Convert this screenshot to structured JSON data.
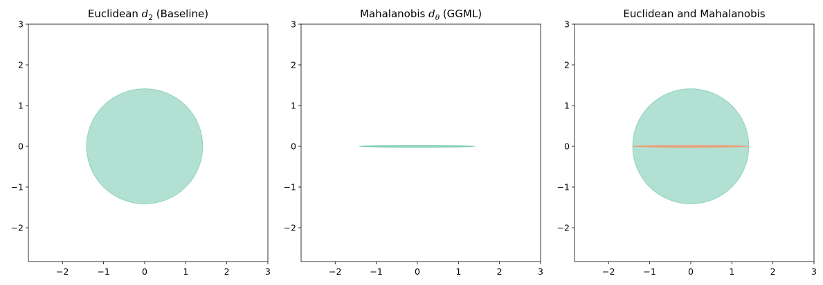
{
  "chart_data": [
    {
      "type": "area",
      "title": "Euclidean d2 (Baseline)",
      "title_parts": {
        "pre": "Euclidean ",
        "sym": "d",
        "sub": "2",
        "post": " (Baseline)"
      },
      "xlabel": "",
      "ylabel": "",
      "xlim": [
        -2.83,
        3
      ],
      "ylim": [
        -2.83,
        3
      ],
      "xticks": [
        -2,
        -1,
        0,
        1,
        2,
        3
      ],
      "yticks": [
        -2,
        -1,
        0,
        1,
        2,
        3
      ],
      "xtick_labels": [
        "−2",
        "−1",
        "0",
        "1",
        "2",
        "3"
      ],
      "ytick_labels": [
        "−2",
        "−1",
        "0",
        "1",
        "2",
        "3"
      ],
      "grid": false,
      "series": [
        {
          "shape": "circle",
          "cx": 0,
          "cy": 0,
          "r": 1.414,
          "color": "#66c2a5",
          "alpha": 0.5
        }
      ]
    },
    {
      "type": "area",
      "title": "Mahalanobis dθ (GGML)",
      "title_parts": {
        "pre": "Mahalanobis ",
        "sym": "d",
        "sub": "θ",
        "post": " (GGML)"
      },
      "xlabel": "",
      "ylabel": "",
      "xlim": [
        -2.83,
        3
      ],
      "ylim": [
        -2.83,
        3
      ],
      "xticks": [
        -2,
        -1,
        0,
        1,
        2,
        3
      ],
      "yticks": [
        -2,
        -1,
        0,
        1,
        2,
        3
      ],
      "xtick_labels": [
        "−2",
        "−1",
        "0",
        "1",
        "2",
        "3"
      ],
      "ytick_labels": [
        "−2",
        "−1",
        "0",
        "1",
        "2",
        "3"
      ],
      "grid": false,
      "series": [
        {
          "shape": "ellipse",
          "cx": 0,
          "cy": 0,
          "rx": 1.414,
          "ry": 0.02,
          "color": "#66c2a5",
          "alpha": 0.5
        }
      ]
    },
    {
      "type": "area",
      "title": "Euclidean and Mahalanobis",
      "title_parts": {
        "pre": "Euclidean and Mahalanobis",
        "sym": "",
        "sub": "",
        "post": ""
      },
      "xlabel": "",
      "ylabel": "",
      "xlim": [
        -2.83,
        3
      ],
      "ylim": [
        -2.83,
        3
      ],
      "xticks": [
        -2,
        -1,
        0,
        1,
        2,
        3
      ],
      "yticks": [
        -2,
        -1,
        0,
        1,
        2,
        3
      ],
      "xtick_labels": [
        "−2",
        "−1",
        "0",
        "1",
        "2",
        "3"
      ],
      "ytick_labels": [
        "−2",
        "−1",
        "0",
        "1",
        "2",
        "3"
      ],
      "grid": false,
      "series": [
        {
          "shape": "circle",
          "cx": 0,
          "cy": 0,
          "r": 1.414,
          "color": "#66c2a5",
          "alpha": 0.5
        },
        {
          "shape": "ellipse",
          "cx": 0,
          "cy": 0,
          "rx": 1.414,
          "ry": 0.02,
          "color": "#fc8d62",
          "alpha": 0.5
        }
      ]
    }
  ]
}
